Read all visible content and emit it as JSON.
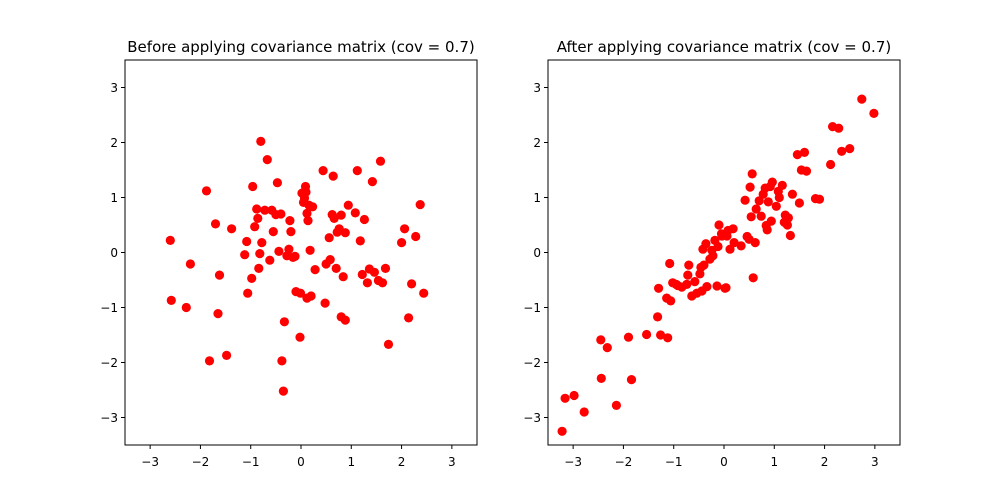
{
  "chart_data": [
    {
      "type": "scatter",
      "title": "Before applying covariance matrix (cov = 0.7)",
      "xlabel": "",
      "ylabel": "",
      "xlim": [
        -3.5,
        3.5
      ],
      "ylim": [
        -3.5,
        3.5
      ],
      "xticks": [
        -3,
        -2,
        -1,
        0,
        1,
        2,
        3
      ],
      "yticks": [
        -3,
        -2,
        -1,
        0,
        1,
        2,
        3
      ],
      "xtick_labels": [
        "−3",
        "−2",
        "−1",
        "0",
        "1",
        "2",
        "3"
      ],
      "ytick_labels": [
        "−3",
        "−2",
        "−1",
        "0",
        "1",
        "2",
        "3"
      ],
      "grid": false,
      "marker_color": "#ff0000",
      "series": [
        {
          "points": [
            [
              -2.6,
              0.22
            ],
            [
              -2.58,
              -0.87
            ],
            [
              -2.28,
              -1.0
            ],
            [
              -2.2,
              -0.21
            ],
            [
              -1.88,
              1.12
            ],
            [
              -1.82,
              -1.97
            ],
            [
              -1.7,
              0.52
            ],
            [
              -1.65,
              -1.11
            ],
            [
              -1.62,
              -0.41
            ],
            [
              -1.48,
              -1.87
            ],
            [
              -1.38,
              0.43
            ],
            [
              -1.12,
              -0.04
            ],
            [
              -1.08,
              0.2
            ],
            [
              -1.06,
              -0.74
            ],
            [
              -0.98,
              -0.47
            ],
            [
              -0.96,
              1.2
            ],
            [
              -0.92,
              0.47
            ],
            [
              -0.88,
              0.79
            ],
            [
              -0.86,
              0.62
            ],
            [
              -0.84,
              -0.29
            ],
            [
              -0.82,
              -0.02
            ],
            [
              -0.8,
              2.02
            ],
            [
              -0.78,
              0.18
            ],
            [
              -0.72,
              0.77
            ],
            [
              -0.67,
              1.69
            ],
            [
              -0.62,
              -0.14
            ],
            [
              -0.58,
              0.77
            ],
            [
              -0.55,
              0.38
            ],
            [
              -0.5,
              0.69
            ],
            [
              -0.47,
              1.27
            ],
            [
              -0.44,
              0.02
            ],
            [
              -0.4,
              0.7
            ],
            [
              -0.38,
              -1.97
            ],
            [
              -0.35,
              -2.52
            ],
            [
              -0.33,
              -1.26
            ],
            [
              -0.28,
              -0.06
            ],
            [
              -0.24,
              0.06
            ],
            [
              -0.22,
              0.58
            ],
            [
              -0.2,
              0.38
            ],
            [
              -0.16,
              -0.09
            ],
            [
              -0.12,
              -0.07
            ],
            [
              -0.1,
              -0.71
            ],
            [
              -0.02,
              -1.54
            ],
            [
              -0.01,
              -0.74
            ],
            [
              0.02,
              1.08
            ],
            [
              0.05,
              0.91
            ],
            [
              0.07,
              0.99
            ],
            [
              0.09,
              1.2
            ],
            [
              0.1,
              1.1
            ],
            [
              0.12,
              0.71
            ],
            [
              0.12,
              -0.83
            ],
            [
              0.14,
              0.58
            ],
            [
              0.16,
              0.86
            ],
            [
              0.18,
              0.04
            ],
            [
              0.2,
              -0.79
            ],
            [
              0.23,
              0.83
            ],
            [
              0.28,
              -0.31
            ],
            [
              0.44,
              1.49
            ],
            [
              0.48,
              -0.92
            ],
            [
              0.5,
              -0.21
            ],
            [
              0.56,
              0.27
            ],
            [
              0.58,
              -0.13
            ],
            [
              0.62,
              0.69
            ],
            [
              0.64,
              1.39
            ],
            [
              0.66,
              0.62
            ],
            [
              0.7,
              -0.29
            ],
            [
              0.72,
              0.37
            ],
            [
              0.76,
              0.43
            ],
            [
              0.8,
              0.68
            ],
            [
              0.8,
              -1.17
            ],
            [
              0.84,
              -0.44
            ],
            [
              0.88,
              0.36
            ],
            [
              0.88,
              -1.23
            ],
            [
              0.94,
              0.86
            ],
            [
              1.08,
              0.72
            ],
            [
              1.12,
              1.49
            ],
            [
              1.18,
              0.21
            ],
            [
              1.22,
              -0.4
            ],
            [
              1.26,
              0.6
            ],
            [
              1.32,
              -0.55
            ],
            [
              1.36,
              -0.3
            ],
            [
              1.42,
              1.29
            ],
            [
              1.46,
              -0.36
            ],
            [
              1.58,
              1.66
            ],
            [
              1.62,
              -0.55
            ],
            [
              1.68,
              -0.29
            ],
            [
              1.74,
              -1.67
            ],
            [
              2.0,
              0.18
            ],
            [
              2.06,
              0.43
            ],
            [
              2.14,
              -1.19
            ],
            [
              2.2,
              -0.57
            ],
            [
              2.28,
              0.29
            ],
            [
              2.37,
              0.87
            ],
            [
              2.44,
              -0.74
            ],
            [
              1.54,
              -0.51
            ]
          ]
        }
      ]
    },
    {
      "type": "scatter",
      "title": "After applying covariance matrix (cov = 0.7)",
      "xlabel": "",
      "ylabel": "",
      "xlim": [
        -3.5,
        3.5
      ],
      "ylim": [
        -3.5,
        3.5
      ],
      "xticks": [
        -3,
        -2,
        -1,
        0,
        1,
        2,
        3
      ],
      "yticks": [
        -3,
        -2,
        -1,
        0,
        1,
        2,
        3
      ],
      "xtick_labels": [
        "−3",
        "−2",
        "−1",
        "0",
        "1",
        "2",
        "3"
      ],
      "ytick_labels": [
        "−3",
        "−2",
        "−1",
        "0",
        "1",
        "2",
        "3"
      ],
      "grid": false,
      "marker_color": "#ff0000",
      "series": [
        {
          "points": [
            [
              -3.22,
              -3.25
            ],
            [
              -3.16,
              -2.65
            ],
            [
              -2.98,
              -2.6
            ],
            [
              -2.78,
              -2.9
            ],
            [
              -2.45,
              -1.59
            ],
            [
              -2.44,
              -2.29
            ],
            [
              -2.32,
              -1.73
            ],
            [
              -2.14,
              -2.78
            ],
            [
              -1.9,
              -1.54
            ],
            [
              -1.84,
              -2.31
            ],
            [
              -1.54,
              -1.49
            ],
            [
              -1.32,
              -1.17
            ],
            [
              -1.3,
              -0.65
            ],
            [
              -1.26,
              -1.5
            ],
            [
              -1.14,
              -0.83
            ],
            [
              -1.12,
              -1.55
            ],
            [
              -1.08,
              -0.2
            ],
            [
              -1.06,
              -0.88
            ],
            [
              -1.02,
              -0.55
            ],
            [
              -0.95,
              -0.58
            ],
            [
              -0.84,
              -0.63
            ],
            [
              -0.74,
              -0.58
            ],
            [
              -0.72,
              -0.41
            ],
            [
              -0.7,
              -0.23
            ],
            [
              -0.64,
              -0.79
            ],
            [
              -0.58,
              -0.53
            ],
            [
              -0.54,
              -0.74
            ],
            [
              -0.48,
              -0.39
            ],
            [
              -0.46,
              -0.27
            ],
            [
              -0.44,
              -0.7
            ],
            [
              -0.42,
              0.06
            ],
            [
              -0.4,
              -0.23
            ],
            [
              -0.36,
              0.16
            ],
            [
              -0.34,
              -0.62
            ],
            [
              -0.28,
              -0.12
            ],
            [
              -0.24,
              0.04
            ],
            [
              -0.22,
              -0.06
            ],
            [
              -0.18,
              0.22
            ],
            [
              -0.14,
              -0.61
            ],
            [
              -0.12,
              0.11
            ],
            [
              -0.1,
              0.5
            ],
            [
              -0.05,
              0.34
            ],
            [
              -0.04,
              0.3
            ],
            [
              0.02,
              -0.65
            ],
            [
              0.04,
              -0.64
            ],
            [
              0.06,
              0.3
            ],
            [
              0.08,
              0.4
            ],
            [
              0.12,
              0.06
            ],
            [
              0.18,
              0.43
            ],
            [
              0.2,
              0.18
            ],
            [
              0.34,
              0.12
            ],
            [
              0.42,
              0.95
            ],
            [
              0.46,
              0.29
            ],
            [
              0.5,
              0.24
            ],
            [
              0.52,
              1.19
            ],
            [
              0.54,
              0.65
            ],
            [
              0.56,
              1.43
            ],
            [
              0.58,
              -0.46
            ],
            [
              0.62,
              0.18
            ],
            [
              0.64,
              0.79
            ],
            [
              0.7,
              0.94
            ],
            [
              0.74,
              0.66
            ],
            [
              0.78,
              1.06
            ],
            [
              0.82,
              1.17
            ],
            [
              0.84,
              0.49
            ],
            [
              0.86,
              0.41
            ],
            [
              0.88,
              0.92
            ],
            [
              0.92,
              1.2
            ],
            [
              0.94,
              0.57
            ],
            [
              0.96,
              1.28
            ],
            [
              1.04,
              0.84
            ],
            [
              1.08,
              1.11
            ],
            [
              1.16,
              1.22
            ],
            [
              1.2,
              0.55
            ],
            [
              1.22,
              0.68
            ],
            [
              1.26,
              0.5
            ],
            [
              1.28,
              0.63
            ],
            [
              1.32,
              0.31
            ],
            [
              1.36,
              1.06
            ],
            [
              1.46,
              1.78
            ],
            [
              1.5,
              0.9
            ],
            [
              1.54,
              1.5
            ],
            [
              1.6,
              1.82
            ],
            [
              1.64,
              1.48
            ],
            [
              1.82,
              0.98
            ],
            [
              1.9,
              0.97
            ],
            [
              2.12,
              1.6
            ],
            [
              2.16,
              2.29
            ],
            [
              2.28,
              2.26
            ],
            [
              2.34,
              1.84
            ],
            [
              2.5,
              1.89
            ],
            [
              2.74,
              2.79
            ],
            [
              2.98,
              2.53
            ],
            [
              1.1,
              1.0
            ],
            [
              -0.92,
              -0.6
            ]
          ]
        }
      ]
    }
  ]
}
